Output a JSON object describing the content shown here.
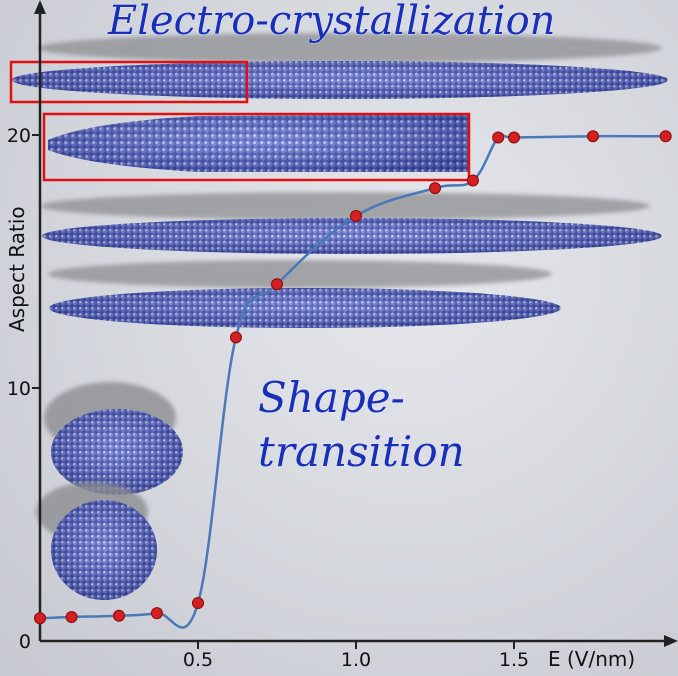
{
  "chart_data": {
    "type": "line",
    "xlabel": "E (V/nm)",
    "ylabel": "Aspect Ratio",
    "xlim": [
      0,
      1.9
    ],
    "ylim": [
      0,
      25
    ],
    "x_ticks": [
      {
        "value": 0.5,
        "label": "0.5"
      },
      {
        "value": 1.0,
        "label": "1.0"
      },
      {
        "value": 1.5,
        "label": "1.5"
      }
    ],
    "y_ticks": [
      {
        "value": 0,
        "label": "0"
      },
      {
        "value": 10,
        "label": "10"
      },
      {
        "value": 20,
        "label": "20"
      }
    ],
    "series": [
      {
        "x": [
          0.0,
          0.1,
          0.25,
          0.37,
          0.5,
          0.62,
          0.75,
          1.0,
          1.25,
          1.37,
          1.45,
          1.5,
          1.75,
          1.98
        ],
        "y": [
          0.9,
          0.95,
          1.0,
          1.1,
          1.5,
          12.0,
          14.1,
          16.8,
          17.9,
          18.2,
          19.9,
          19.9,
          19.95,
          19.95
        ],
        "color": "#4a78b8",
        "marker_color": "#d42020"
      }
    ],
    "annotations": [
      {
        "text": "Electro-crystallization"
      },
      {
        "text": "Shape-"
      },
      {
        "text": "transition"
      }
    ],
    "grid": false,
    "legend": "none"
  }
}
